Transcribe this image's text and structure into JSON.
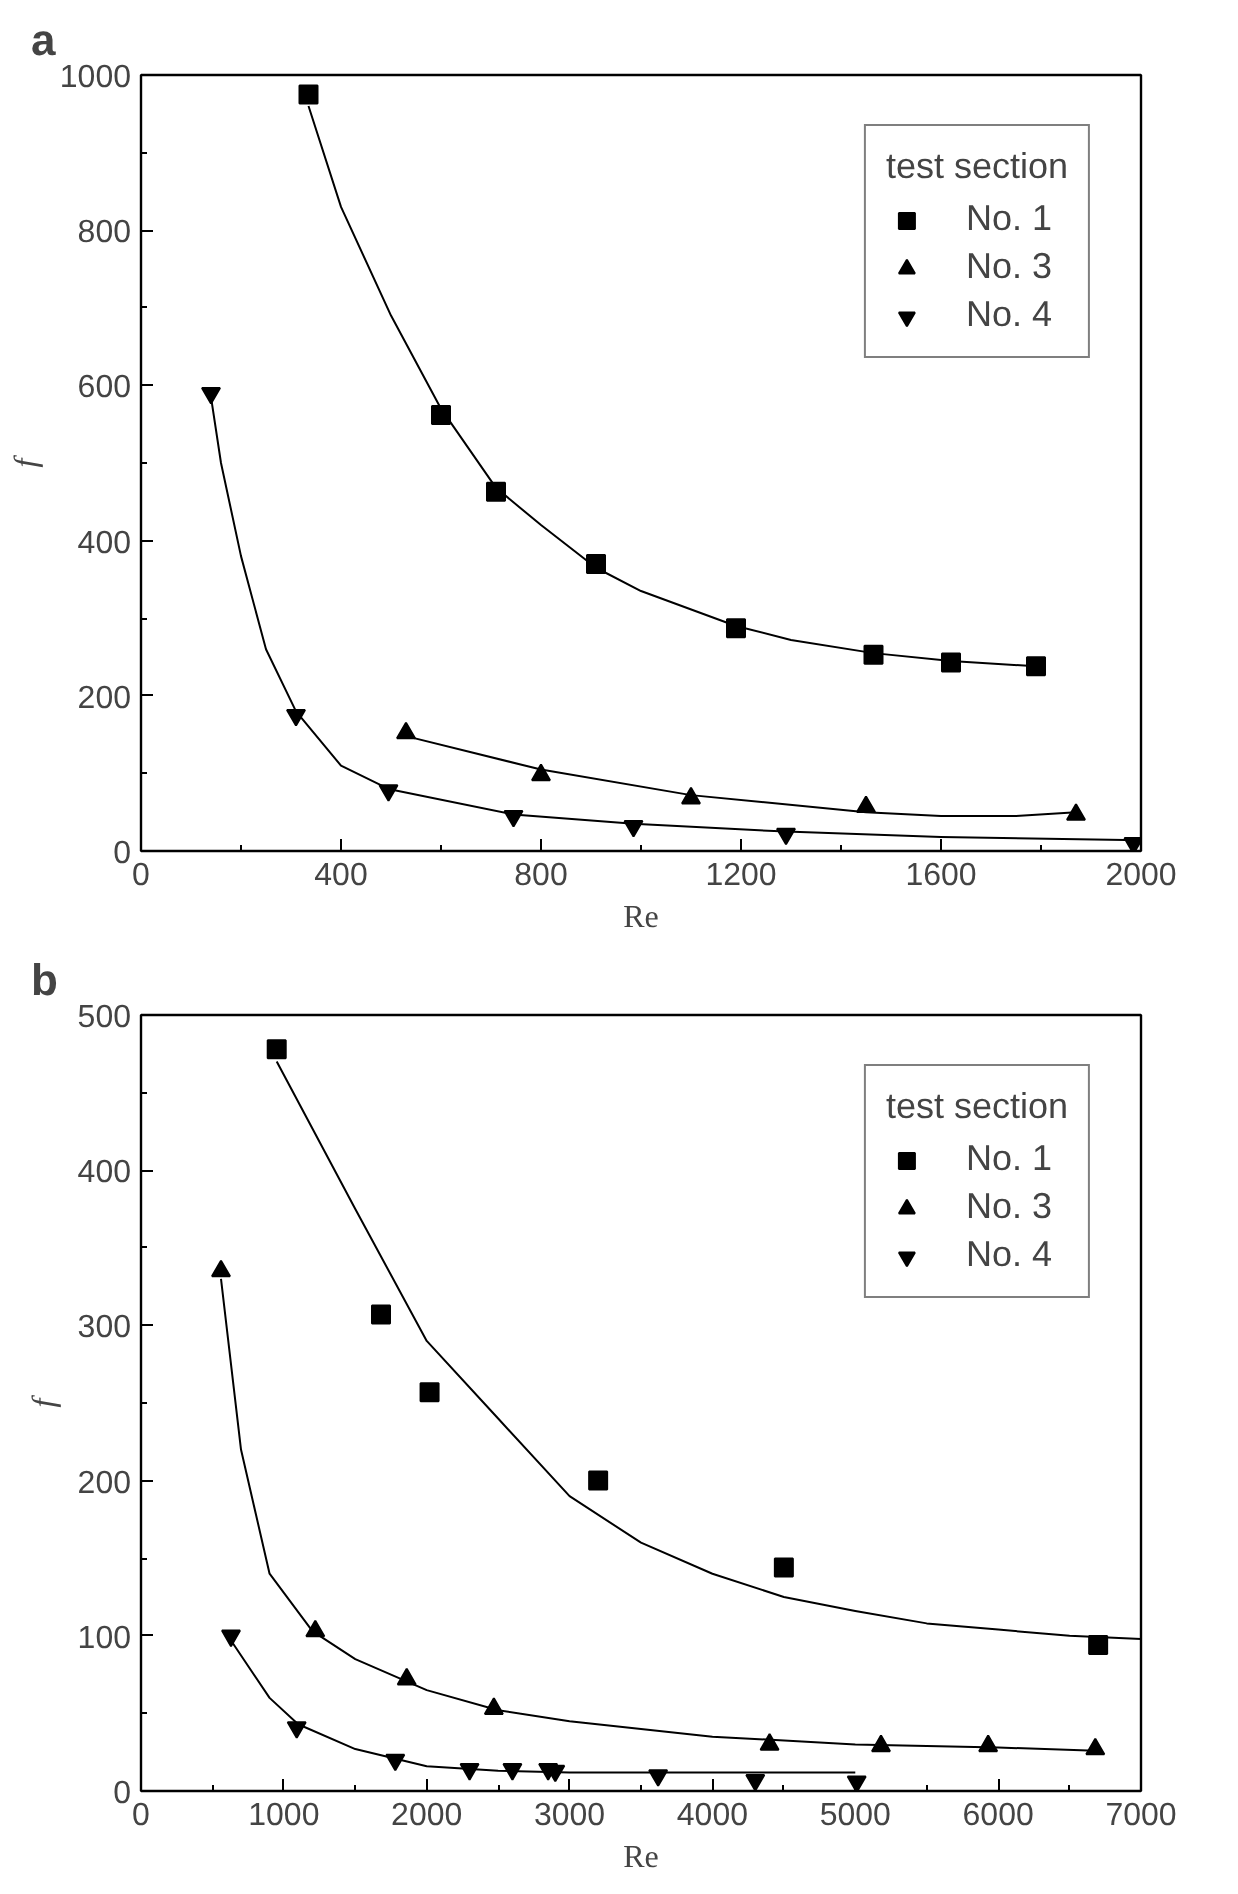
{
  "chart_data": [
    {
      "type": "scatter",
      "title": "a",
      "xlabel": "Re",
      "ylabel": "f",
      "legend_title": "test section",
      "legend": "top right",
      "grid": false,
      "xlim": [
        0,
        2000
      ],
      "xticks": [
        0,
        400,
        800,
        1200,
        1600,
        2000
      ],
      "ylim": [
        0,
        1000
      ],
      "yticks": [
        0,
        200,
        400,
        600,
        800,
        1000
      ],
      "series": [
        {
          "name": "No. 1",
          "color": "#000000",
          "marker": "square",
          "x": [
            335,
            600,
            710,
            910,
            1190,
            1465,
            1620,
            1790
          ],
          "values": [
            975,
            562,
            463,
            370,
            287,
            253,
            243,
            238
          ]
        },
        {
          "name": "No. 3",
          "color": "#000000",
          "marker": "triangle",
          "x": [
            530,
            800,
            1100,
            1450,
            1870
          ],
          "values": [
            152,
            98,
            68,
            57,
            47
          ]
        },
        {
          "name": "No. 4",
          "color": "#000000",
          "marker": "triangle_down",
          "x": [
            140,
            310,
            495,
            745,
            985,
            1290,
            1985
          ],
          "values": [
            590,
            175,
            78,
            45,
            32,
            22,
            10
          ]
        },
        {
          "type": "line",
          "color": "#000000",
          "line_style": "solid",
          "x": [
            335,
            400,
            500,
            600,
            710,
            800,
            910,
            1000,
            1190,
            1300,
            1465,
            1620,
            1790
          ],
          "values": [
            960,
            830,
            690,
            570,
            468,
            420,
            365,
            335,
            290,
            272,
            255,
            245,
            238
          ]
        },
        {
          "type": "line",
          "color": "#000000",
          "line_style": "solid",
          "x": [
            530,
            800,
            1100,
            1450,
            1600,
            1750,
            1870
          ],
          "values": [
            148,
            105,
            72,
            50,
            45,
            45,
            50
          ]
        },
        {
          "type": "line",
          "color": "#000000",
          "line_style": "solid",
          "x": [
            140,
            160,
            200,
            250,
            310,
            400,
            495,
            745,
            985,
            1290,
            1600,
            2000
          ],
          "values": [
            585,
            500,
            380,
            260,
            180,
            110,
            80,
            47,
            35,
            25,
            18,
            14
          ]
        }
      ]
    },
    {
      "type": "scatter",
      "title": "b",
      "xlabel": "Re",
      "ylabel": "f",
      "legend_title": "test section",
      "legend": "top right",
      "grid": false,
      "xlim": [
        0,
        7000
      ],
      "xticks": [
        0,
        1000,
        2000,
        3000,
        4000,
        5000,
        6000,
        7000
      ],
      "ylim": [
        0,
        500
      ],
      "yticks": [
        0,
        100,
        200,
        300,
        400,
        500
      ],
      "series": [
        {
          "name": "No. 1",
          "color": "#000000",
          "marker": "square",
          "x": [
            950,
            1680,
            2020,
            3200,
            4500,
            6700
          ],
          "values": [
            478,
            307,
            257,
            200,
            144,
            94
          ]
        },
        {
          "name": "No. 3",
          "color": "#000000",
          "marker": "triangle",
          "x": [
            560,
            1220,
            1860,
            2470,
            4400,
            5180,
            5930,
            6680
          ],
          "values": [
            335,
            103,
            72,
            53,
            30,
            29,
            29,
            27
          ]
        },
        {
          "name": "No. 4",
          "color": "#000000",
          "marker": "triangle_down",
          "x": [
            630,
            1090,
            1780,
            2300,
            2600,
            2850,
            2900,
            3620,
            4300,
            5010
          ],
          "values": [
            100,
            41,
            20,
            14,
            14,
            14,
            13,
            10,
            7,
            6
          ]
        },
        {
          "type": "line",
          "color": "#000000",
          "line_style": "solid",
          "x": [
            950,
            1500,
            2000,
            2500,
            3000,
            3500,
            4000,
            4500,
            5000,
            5500,
            6000,
            6500,
            7000
          ],
          "values": [
            470,
            375,
            290,
            240,
            190,
            160,
            140,
            125,
            116,
            108,
            104,
            100,
            98
          ]
        },
        {
          "type": "line",
          "color": "#000000",
          "line_style": "solid",
          "x": [
            560,
            700,
            900,
            1200,
            1500,
            2000,
            2500,
            3000,
            4000,
            5000,
            6000,
            6680
          ],
          "values": [
            330,
            220,
            140,
            103,
            85,
            65,
            52,
            45,
            35,
            30,
            28,
            26
          ]
        },
        {
          "type": "line",
          "color": "#000000",
          "line_style": "solid",
          "x": [
            630,
            900,
            1100,
            1500,
            2000,
            2500,
            3000,
            4000,
            5000
          ],
          "values": [
            97,
            60,
            43,
            27,
            16,
            13,
            12,
            12,
            12
          ]
        }
      ]
    }
  ]
}
